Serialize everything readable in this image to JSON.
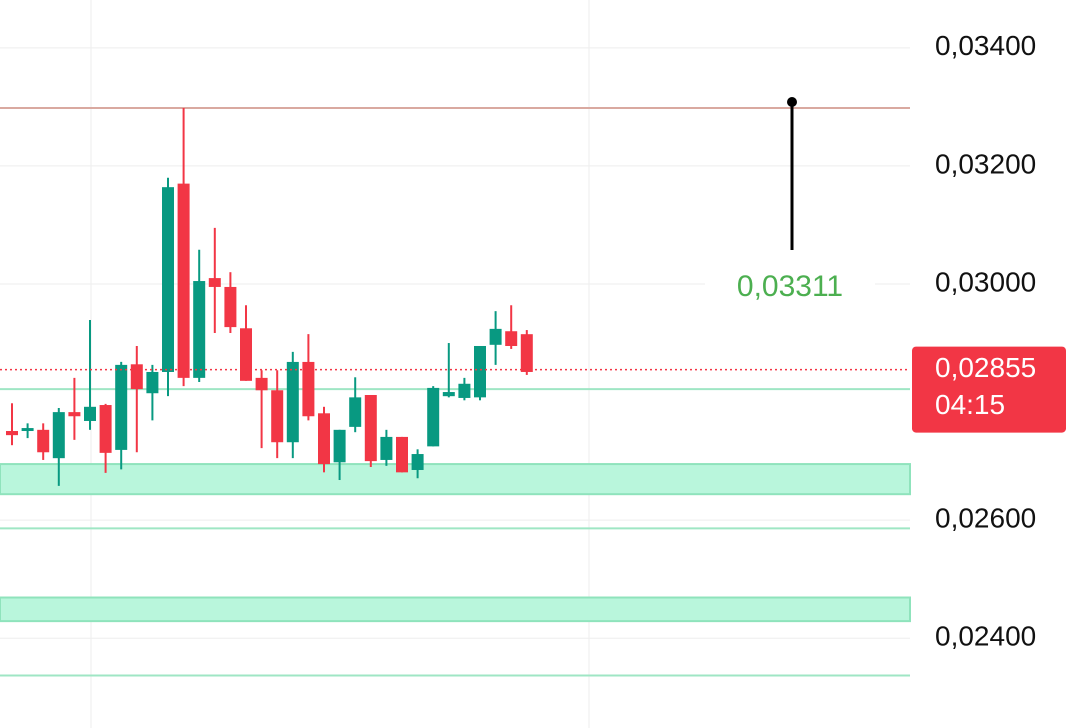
{
  "chart_data": {
    "type": "candlestick",
    "ylim": [
      0.02248,
      0.03481
    ],
    "yticks": [
      {
        "value": 0.034,
        "label": "0,03400"
      },
      {
        "value": 0.032,
        "label": "0,03200"
      },
      {
        "value": 0.03,
        "label": "0,03000"
      },
      {
        "value": 0.026,
        "label": "0,02600"
      },
      {
        "value": 0.024,
        "label": "0,02400"
      }
    ],
    "grid": true,
    "up_color": "#089981",
    "down_color": "#f23645",
    "open": [
      0.02751,
      0.02751,
      0.02753,
      0.02705,
      0.02783,
      0.02768,
      0.02795,
      0.02719,
      0.02864,
      0.02815,
      0.02851,
      0.0317,
      0.02841,
      0.0301,
      0.02995,
      0.02925,
      0.02841,
      0.0282,
      0.02732,
      0.02868,
      0.02781,
      0.02698,
      0.02758,
      0.02812,
      0.02702,
      0.02741,
      0.02685,
      0.02725,
      0.0281,
      0.02807,
      0.02808,
      0.02897,
      0.0292,
      0.02915
    ],
    "high": [
      0.02798,
      0.02764,
      0.02764,
      0.0279,
      0.02841,
      0.02939,
      0.02797,
      0.02868,
      0.02895,
      0.02863,
      0.0318,
      0.03298,
      0.03058,
      0.03095,
      0.0302,
      0.02964,
      0.02854,
      0.02854,
      0.02885,
      0.02915,
      0.02792,
      0.02753,
      0.02842,
      0.02812,
      0.02753,
      0.02741,
      0.0272,
      0.02827,
      0.029,
      0.02841,
      0.02895,
      0.02954,
      0.02964,
      0.02922
    ],
    "low": [
      0.02727,
      0.02739,
      0.02702,
      0.02658,
      0.02736,
      0.02753,
      0.0268,
      0.02686,
      0.02715,
      0.02769,
      0.0281,
      0.02827,
      0.02834,
      0.02917,
      0.02917,
      0.02836,
      0.02722,
      0.02705,
      0.02705,
      0.02769,
      0.02681,
      0.02668,
      0.02749,
      0.0269,
      0.02692,
      0.02681,
      0.02671,
      0.02725,
      0.02808,
      0.02803,
      0.02803,
      0.02863,
      0.0289,
      0.02846
    ],
    "close": [
      0.02744,
      0.02756,
      0.02715,
      0.02783,
      0.02776,
      0.02792,
      0.02714,
      0.02863,
      0.02822,
      0.02851,
      0.03164,
      0.02841,
      0.03005,
      0.02995,
      0.02927,
      0.02836,
      0.0282,
      0.02732,
      0.02868,
      0.02776,
      0.02695,
      0.02753,
      0.02808,
      0.027,
      0.02741,
      0.02681,
      0.02712,
      0.02824,
      0.02817,
      0.02831,
      0.02895,
      0.02924,
      0.02895,
      0.02851
    ],
    "resistance_line": {
      "value": 0.03298,
      "color": "#d9a9a0"
    },
    "zones": [
      {
        "from": 0.02644,
        "to": 0.02695
      },
      {
        "from": 0.02429,
        "to": 0.02469
      }
    ],
    "levels": [
      0.02822,
      0.02586,
      0.02337
    ],
    "zone_color": "#b9f6dc",
    "annotation": "0,03311",
    "annotation_color": "#4caf50",
    "price": {
      "value": 0.02855,
      "label": "0,02855"
    },
    "countdown": "04:15"
  }
}
